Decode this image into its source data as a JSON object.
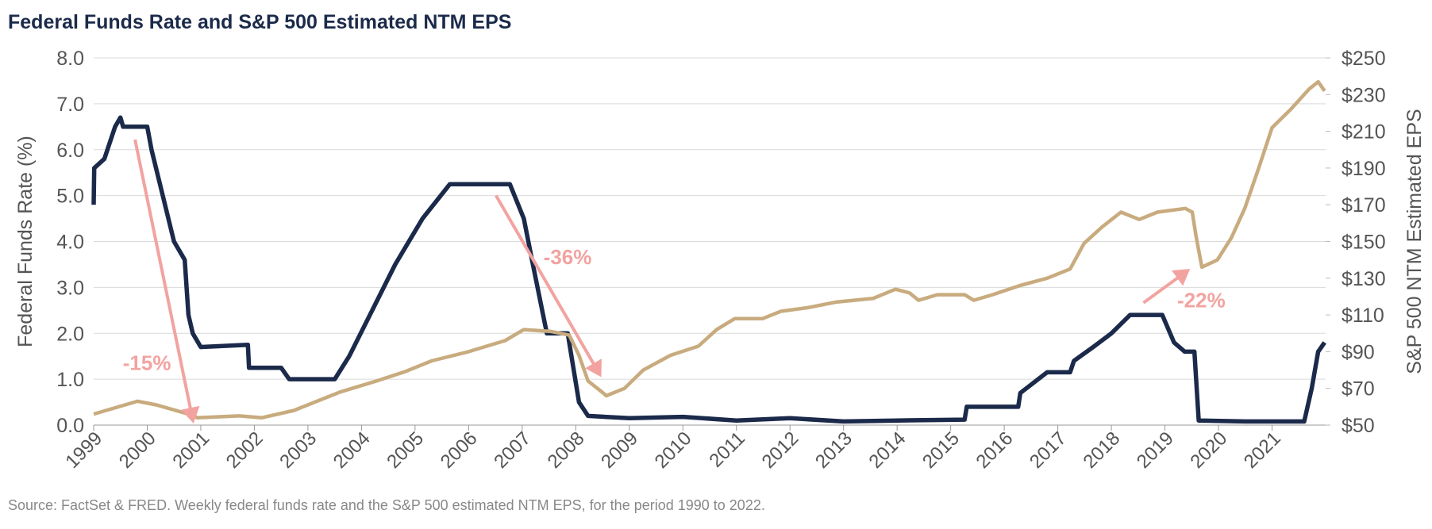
{
  "chart_data": {
    "type": "line",
    "title": "Federal Funds Rate and S&P 500 Estimated NTM EPS",
    "ylabel": "Federal Funds Rate (%)",
    "y2label": "S&P 500 NTM Estimated EPS",
    "source": "Source: FactSet & FRED. Weekly federal funds rate and the S&P 500 estimated NTM EPS, for the period 1990 to 2022.",
    "xlim": [
      1999,
      2022
    ],
    "xticks": [
      1999,
      2000,
      2001,
      2002,
      2003,
      2004,
      2005,
      2006,
      2007,
      2008,
      2009,
      2010,
      2011,
      2012,
      2013,
      2014,
      2015,
      2016,
      2017,
      2018,
      2019,
      2020,
      2021
    ],
    "ylim": [
      0,
      8
    ],
    "yticks": [
      {
        "value": 0,
        "label": "0.0"
      },
      {
        "value": 1,
        "label": "1.0"
      },
      {
        "value": 2,
        "label": "2.0"
      },
      {
        "value": 3,
        "label": "3.0"
      },
      {
        "value": 4,
        "label": "4.0"
      },
      {
        "value": 5,
        "label": "5.0"
      },
      {
        "value": 6,
        "label": "6.0"
      },
      {
        "value": 7,
        "label": "7.0"
      },
      {
        "value": 8,
        "label": "8.0"
      }
    ],
    "y2lim": [
      50,
      250
    ],
    "y2ticks": [
      {
        "value": 50,
        "label": "$50"
      },
      {
        "value": 70,
        "label": "$70"
      },
      {
        "value": 90,
        "label": "$90"
      },
      {
        "value": 110,
        "label": "$110"
      },
      {
        "value": 130,
        "label": "$130"
      },
      {
        "value": 150,
        "label": "$150"
      },
      {
        "value": 170,
        "label": "$170"
      },
      {
        "value": 190,
        "label": "$190"
      },
      {
        "value": 210,
        "label": "$210"
      },
      {
        "value": 230,
        "label": "$230"
      },
      {
        "value": 250,
        "label": "$250"
      }
    ],
    "grid": true,
    "series": [
      {
        "color": "#1b2a4a",
        "axis": "y",
        "x": [
          1999.0,
          1999.01,
          1999.2,
          1999.4,
          1999.5,
          1999.55,
          2000.0,
          2000.08,
          2000.5,
          2000.7,
          2000.77,
          2000.85,
          2001.0,
          2001.88,
          2001.9,
          2002.5,
          2002.65,
          2003.5,
          2003.77,
          2004.2,
          2004.63,
          2005.14,
          2005.65,
          2006.77,
          2007.03,
          2007.2,
          2007.46,
          2007.85,
          2008.06,
          2008.23,
          2009.0,
          2010.0,
          2011.0,
          2012.0,
          2013.0,
          2014.0,
          2015.26,
          2015.3,
          2016.26,
          2016.3,
          2016.8,
          2017.23,
          2017.3,
          2017.66,
          2018.0,
          2018.35,
          2018.95,
          2019.17,
          2019.37,
          2019.55,
          2019.63,
          2020.5,
          2021.6,
          2021.74,
          2021.86,
          2021.98
        ],
        "values": [
          4.8,
          5.6,
          5.8,
          6.5,
          6.7,
          6.5,
          6.5,
          6.0,
          4.0,
          3.6,
          2.4,
          2.0,
          1.7,
          1.75,
          1.25,
          1.25,
          1.0,
          1.0,
          1.5,
          2.5,
          3.5,
          4.5,
          5.25,
          5.25,
          4.5,
          3.5,
          2.0,
          2.0,
          0.5,
          0.2,
          0.15,
          0.18,
          0.1,
          0.15,
          0.08,
          0.1,
          0.12,
          0.4,
          0.4,
          0.7,
          1.15,
          1.15,
          1.4,
          1.7,
          2.0,
          2.4,
          2.4,
          1.8,
          1.6,
          1.6,
          0.1,
          0.08,
          0.08,
          0.8,
          1.6,
          1.8
        ]
      },
      {
        "color": "#c8ab7e",
        "axis": "y2",
        "x": [
          1999.0,
          1999.82,
          2000.17,
          2000.77,
          2000.94,
          2001.72,
          2002.14,
          2002.74,
          2003.17,
          2003.6,
          2004.28,
          2004.8,
          2005.31,
          2006.0,
          2006.68,
          2007.03,
          2007.54,
          2007.88,
          2008.06,
          2008.23,
          2008.49,
          2008.57,
          2008.91,
          2009.26,
          2009.77,
          2010.29,
          2010.63,
          2010.97,
          2011.49,
          2011.83,
          2012.34,
          2012.86,
          2013.55,
          2013.97,
          2014.23,
          2014.4,
          2014.75,
          2015.26,
          2015.43,
          2015.78,
          2016.29,
          2016.8,
          2017.23,
          2017.49,
          2017.83,
          2018.18,
          2018.52,
          2018.86,
          2019.38,
          2019.51,
          2019.58,
          2019.69,
          2019.98,
          2020.24,
          2020.49,
          2020.75,
          2021.0,
          2021.35,
          2021.69,
          2021.86,
          2021.98
        ],
        "values": [
          56,
          63,
          61,
          56,
          54,
          55,
          54,
          58,
          63,
          68,
          74,
          79,
          85,
          90,
          96,
          102,
          101,
          99,
          88,
          74,
          68,
          66,
          70,
          80,
          88,
          93,
          102,
          108,
          108,
          112,
          114,
          117,
          119,
          124,
          122,
          118,
          121,
          121,
          118,
          121,
          126,
          130,
          135,
          149,
          158,
          166,
          162,
          166,
          168,
          166,
          153,
          136,
          140,
          152,
          168,
          190,
          212,
          222,
          233,
          237,
          232
        ]
      }
    ],
    "annotations": [
      "-15%",
      "-36%",
      "-22%"
    ]
  }
}
